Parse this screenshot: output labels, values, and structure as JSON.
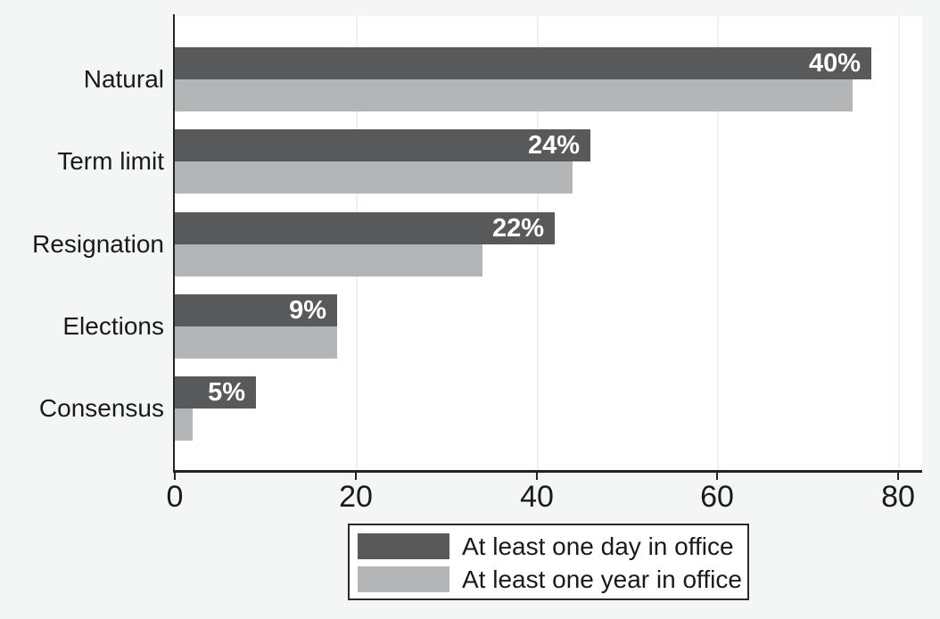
{
  "colors": {
    "background": "#f4f5f5",
    "plot_background": "#ffffff",
    "gridline": "#eef0f0",
    "axis": "#242424",
    "text": "#1a1a1a",
    "bar_label_text": "#ffffff",
    "series_dark": "#58595b",
    "series_light": "#b4b5b7"
  },
  "chart_data": {
    "type": "bar",
    "orientation": "horizontal",
    "title": "",
    "xlabel": "",
    "ylabel": "",
    "categories": [
      "Natural",
      "Term limit",
      "Resignation",
      "Elections",
      "Consensus"
    ],
    "series": [
      {
        "name": "At least one day in office",
        "color": "#58595b",
        "values": [
          77,
          46,
          42,
          18,
          9
        ],
        "bar_labels": [
          "40%",
          "24%",
          "22%",
          "9%",
          "5%"
        ]
      },
      {
        "name": "At least one year in office",
        "color": "#b4b5b7",
        "values": [
          75,
          44,
          34,
          18,
          2
        ],
        "bar_labels": [
          "",
          "",
          "",
          "",
          ""
        ]
      }
    ],
    "xticks": [
      0,
      20,
      40,
      60,
      80
    ],
    "xlim": [
      0,
      82.7
    ],
    "grid": true,
    "legend_position": "bottom-center"
  }
}
